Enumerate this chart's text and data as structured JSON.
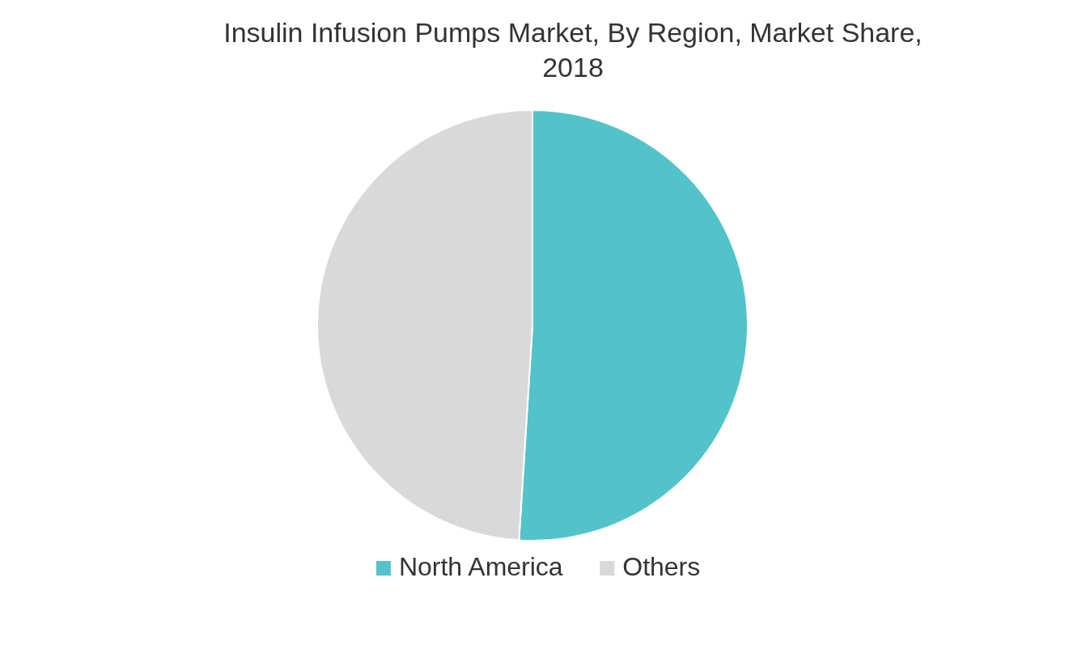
{
  "chart_data": {
    "type": "pie",
    "title": "Insulin Infusion Pumps Market, By Region, Market Share, 2018",
    "categories": [
      "North America",
      "Others"
    ],
    "values": [
      51,
      49
    ],
    "colors": [
      "#52c3c9",
      "#d9d9d9"
    ],
    "legend": "bottom"
  }
}
